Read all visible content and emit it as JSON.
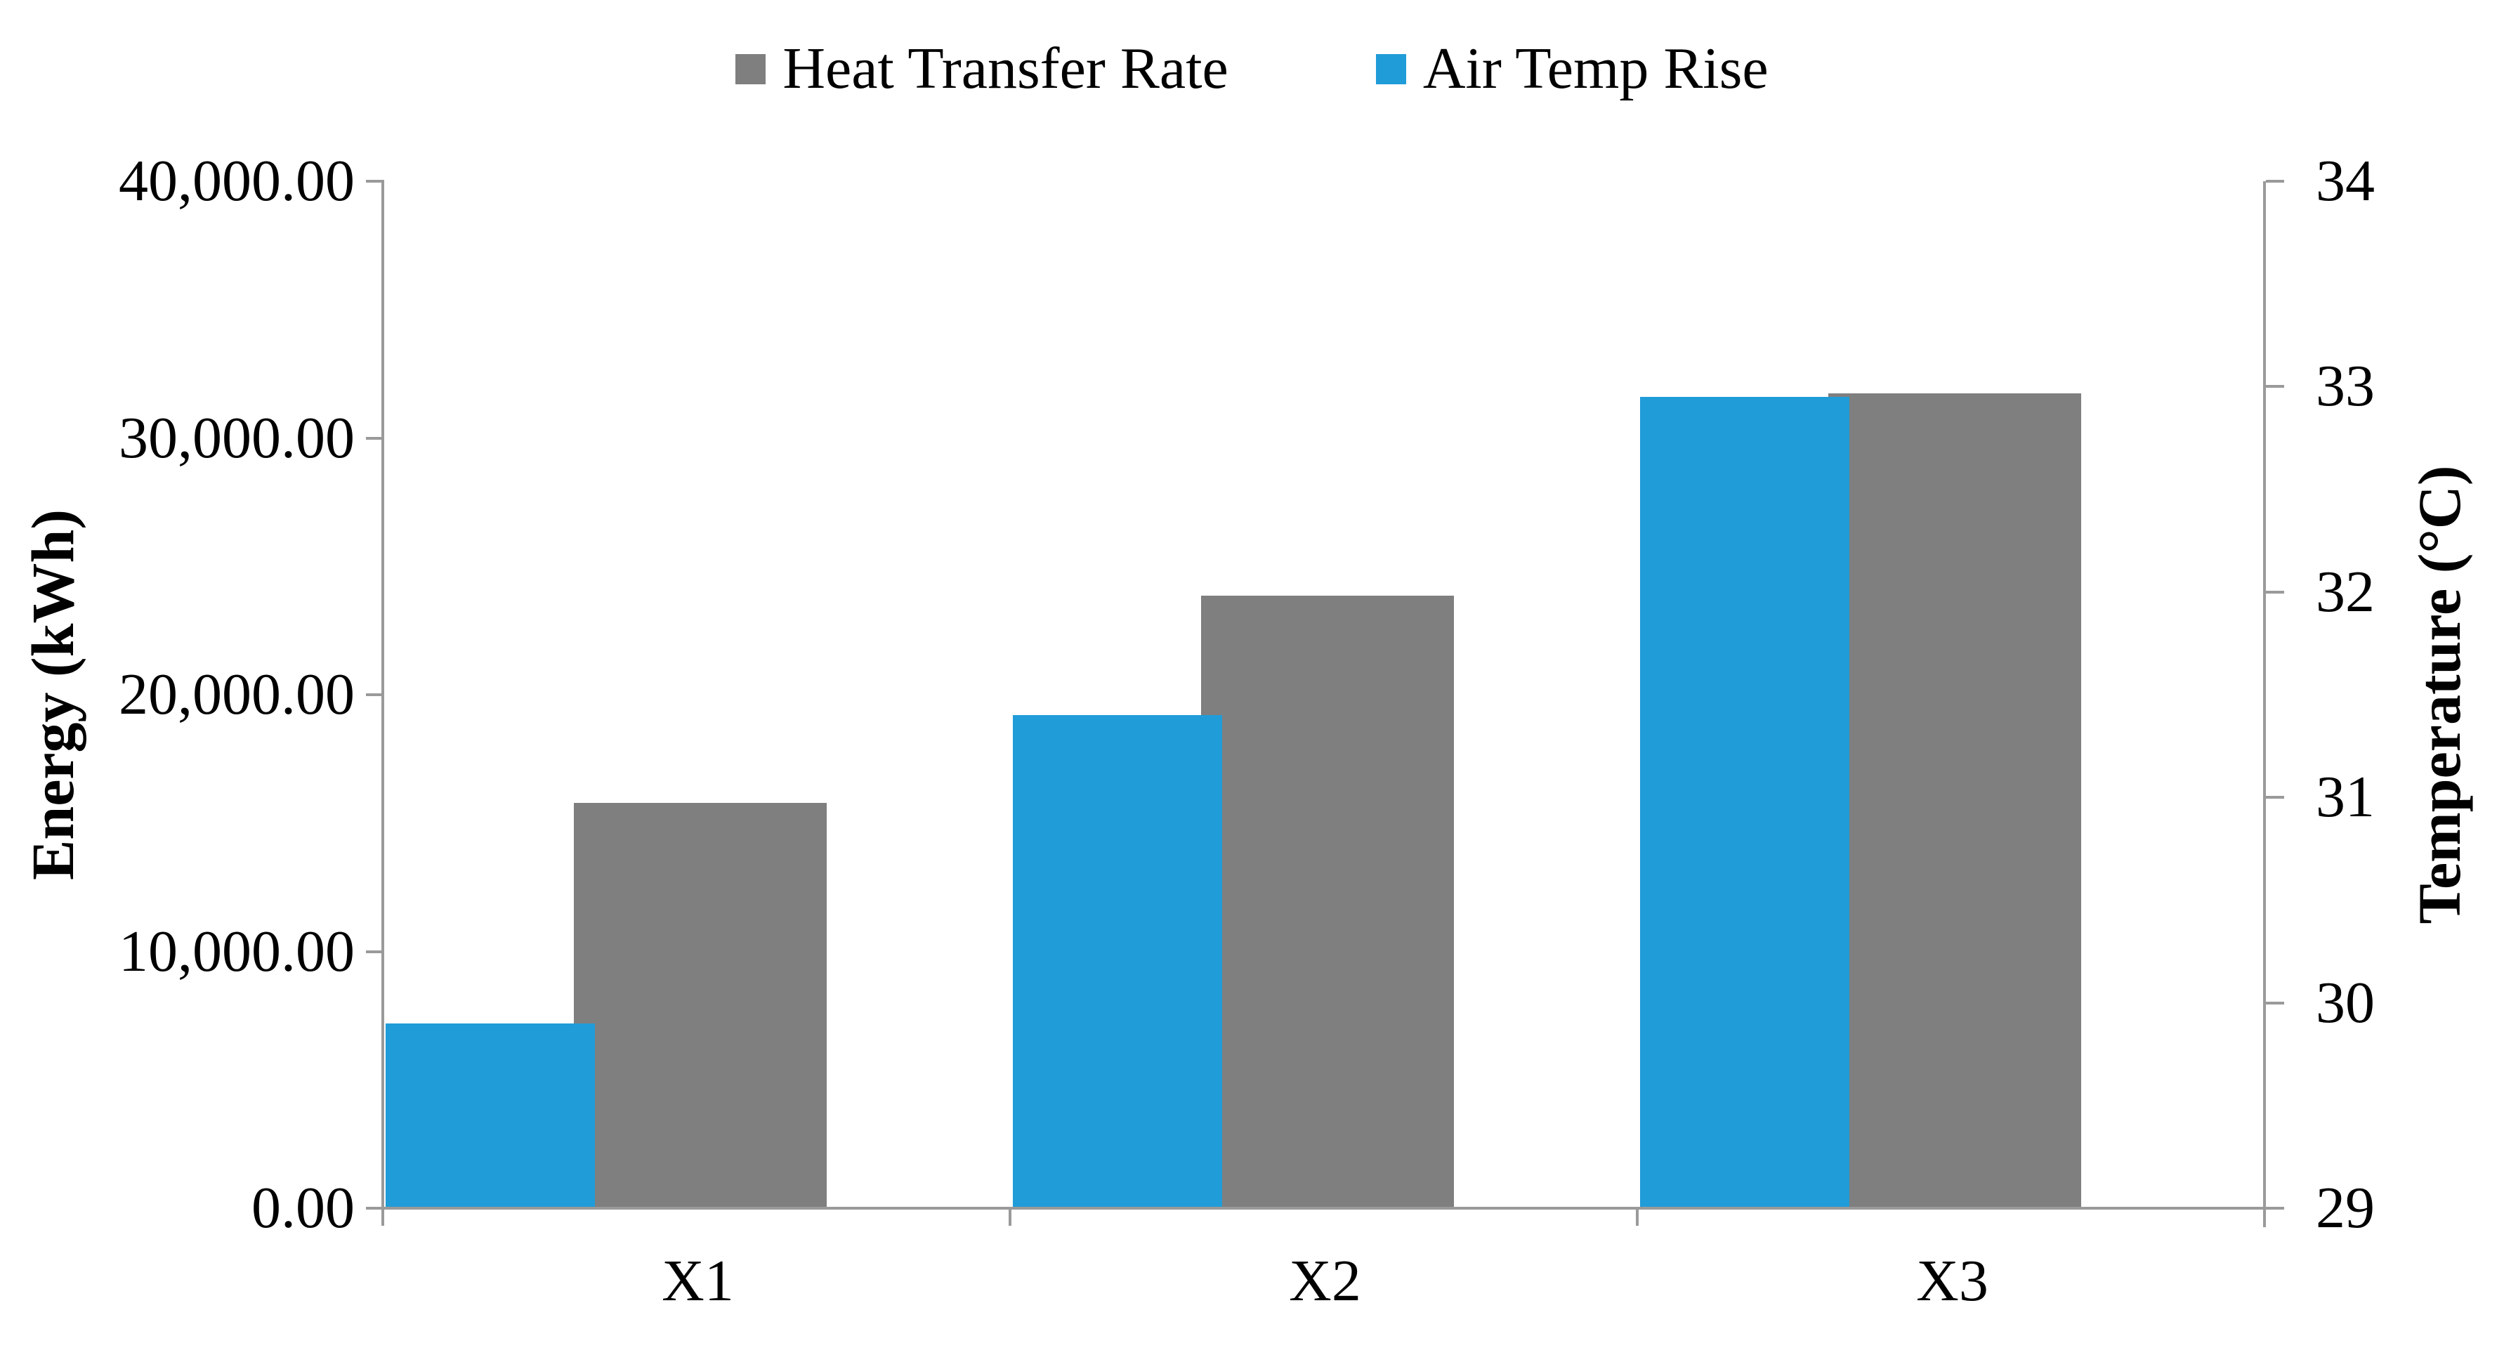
{
  "chart_data": {
    "type": "bar",
    "title": "",
    "categories": [
      "X1",
      "X2",
      "X3"
    ],
    "series": [
      {
        "name": "Heat Transfer Rate",
        "axis": "left",
        "color": "#7F7F7F",
        "values": [
          15800,
          23850,
          31750
        ]
      },
      {
        "name": "Air Temp Rise",
        "axis": "right",
        "color": "#209CD8",
        "values": [
          29.9,
          31.4,
          32.95
        ]
      }
    ],
    "y_left": {
      "label": "Energy (kWh)",
      "min": 0,
      "max": 40000,
      "ticks": [
        {
          "value": 40000,
          "label": "40,000.00"
        },
        {
          "value": 30000,
          "label": "30,000.00"
        },
        {
          "value": 20000,
          "label": "20,000.00"
        },
        {
          "value": 10000,
          "label": "10,000.00"
        },
        {
          "value": 0,
          "label": "0.00"
        }
      ]
    },
    "y_right": {
      "label": "Temperature (°C)",
      "min": 29,
      "max": 34,
      "ticks": [
        {
          "value": 34,
          "label": "34"
        },
        {
          "value": 33,
          "label": "33"
        },
        {
          "value": 32,
          "label": "32"
        },
        {
          "value": 31,
          "label": "31"
        },
        {
          "value": 30,
          "label": "30"
        },
        {
          "value": 29,
          "label": "29"
        }
      ]
    },
    "legend_position": "top",
    "grid": false,
    "axis_color": "#9A9A9A"
  }
}
